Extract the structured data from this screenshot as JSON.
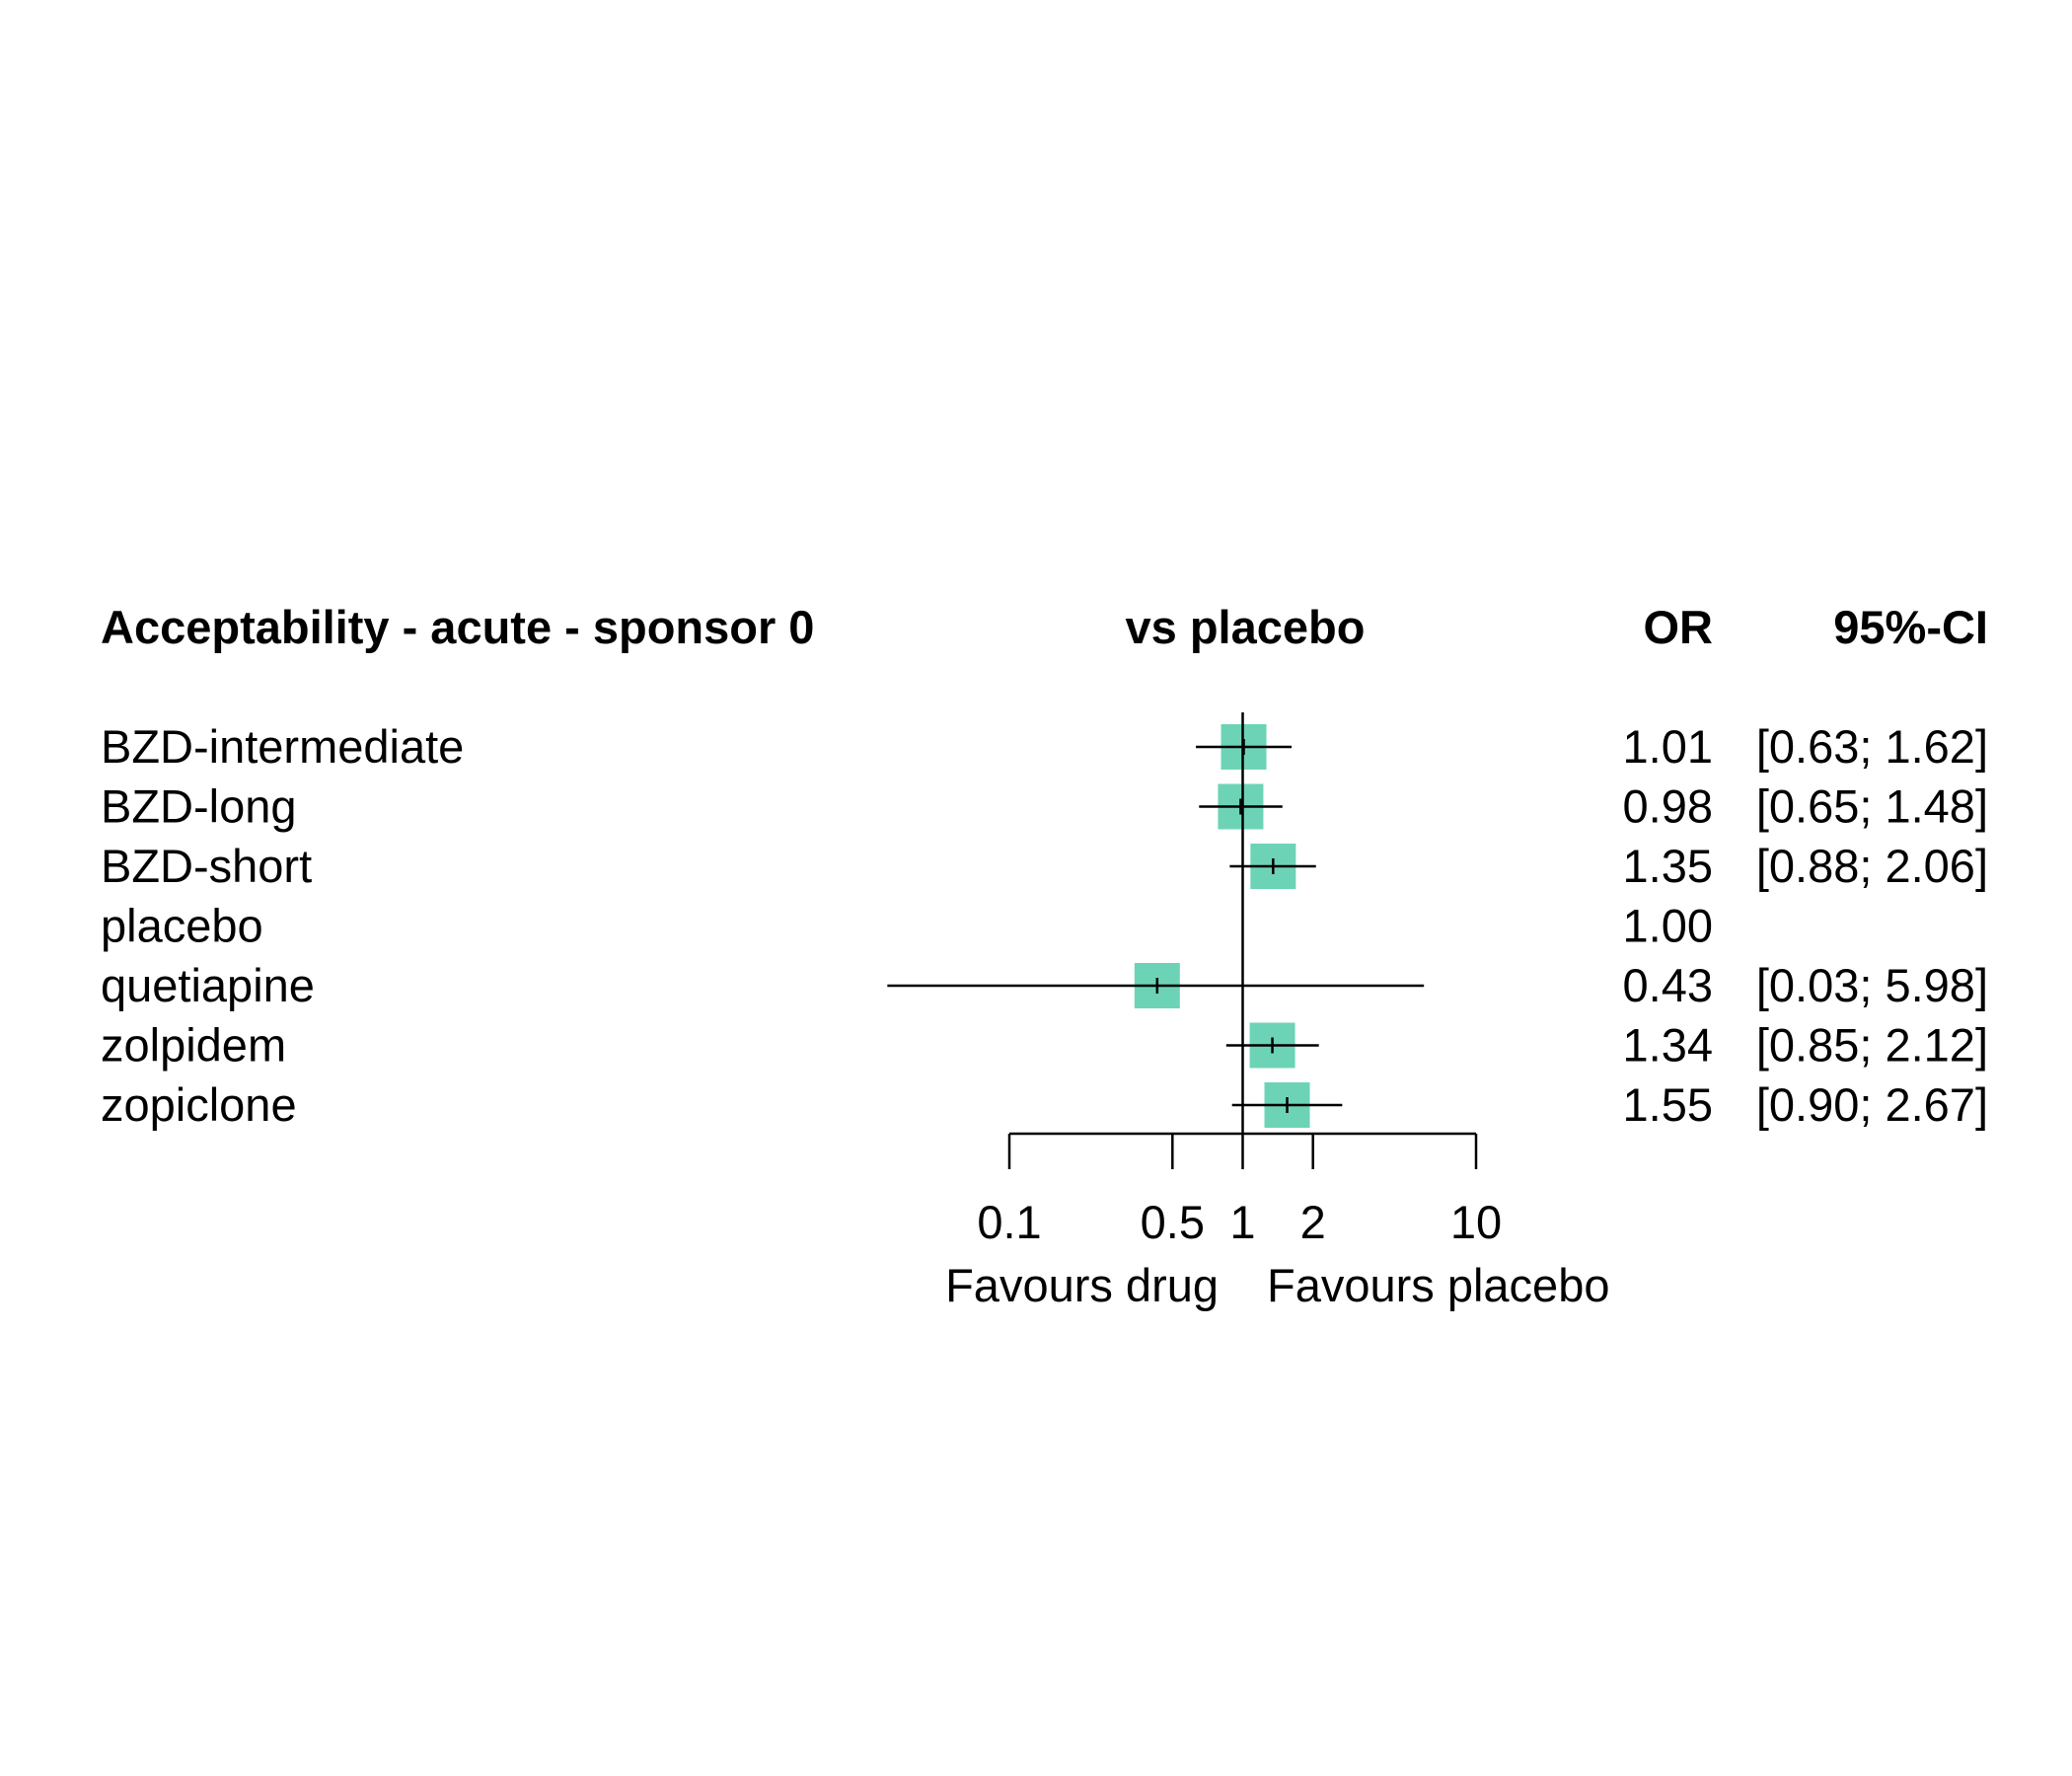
{
  "chart_data": {
    "type": "forest",
    "title": "Acceptability - acute - sponsor 0",
    "comparison_header": "vs placebo",
    "col_headers": {
      "estimate": "OR",
      "ci": "95%-CI"
    },
    "scale": "log",
    "xlim": [
      0.1,
      10
    ],
    "ticks": [
      0.1,
      0.5,
      1,
      2,
      10
    ],
    "tick_labels": [
      "0.1",
      "0.5",
      "1",
      "2",
      "10"
    ],
    "favours_left": "Favours drug",
    "favours_right": "Favours placebo",
    "reference_line": 1,
    "colors": {
      "box": "#6dd3b6",
      "line": "#000000"
    },
    "rows": [
      {
        "label": "BZD-intermediate",
        "or": 1.01,
        "lower": 0.63,
        "upper": 1.62,
        "or_text": "1.01",
        "ci_text": "[0.63; 1.62]"
      },
      {
        "label": "BZD-long",
        "or": 0.98,
        "lower": 0.65,
        "upper": 1.48,
        "or_text": "0.98",
        "ci_text": "[0.65; 1.48]"
      },
      {
        "label": "BZD-short",
        "or": 1.35,
        "lower": 0.88,
        "upper": 2.06,
        "or_text": "1.35",
        "ci_text": "[0.88; 2.06]"
      },
      {
        "label": "placebo",
        "or": 1.0,
        "lower": null,
        "upper": null,
        "or_text": "1.00",
        "ci_text": ""
      },
      {
        "label": "quetiapine",
        "or": 0.43,
        "lower": 0.03,
        "upper": 5.98,
        "or_text": "0.43",
        "ci_text": "[0.03; 5.98]"
      },
      {
        "label": "zolpidem",
        "or": 1.34,
        "lower": 0.85,
        "upper": 2.12,
        "or_text": "1.34",
        "ci_text": "[0.85; 2.12]"
      },
      {
        "label": "zopiclone",
        "or": 1.55,
        "lower": 0.9,
        "upper": 2.67,
        "or_text": "1.55",
        "ci_text": "[0.90; 2.67]"
      }
    ]
  }
}
